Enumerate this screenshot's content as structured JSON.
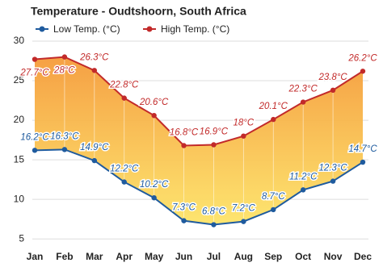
{
  "chart_data": {
    "type": "line",
    "title": "Temperature - Oudtshoorn, South Africa",
    "categories": [
      "Jan",
      "Feb",
      "Mar",
      "Apr",
      "May",
      "Jun",
      "Jul",
      "Aug",
      "Sep",
      "Oct",
      "Nov",
      "Dec"
    ],
    "series": [
      {
        "name": "Low Temp. (°C)",
        "color": "#1f5b9e",
        "values": [
          16.2,
          16.3,
          14.9,
          12.2,
          10.2,
          7.3,
          6.8,
          7.2,
          8.7,
          11.2,
          12.3,
          14.7
        ],
        "value_labels": [
          "16.2°C",
          "16.3°C",
          "14.9°C",
          "12.2°C",
          "10.2°C",
          "7.3°C",
          "6.8°C",
          "7.2°C",
          "8.7°C",
          "11.2°C",
          "12.3°C",
          "14.7°C"
        ]
      },
      {
        "name": "High Temp. (°C)",
        "color": "#c22a2a",
        "values": [
          27.7,
          28,
          26.3,
          22.8,
          20.6,
          16.8,
          16.9,
          18,
          20.1,
          22.3,
          23.8,
          26.2
        ],
        "value_labels": [
          "27.7°C",
          "28°C",
          "26.3°C",
          "22.8°C",
          "20.6°C",
          "16.8°C",
          "16.9°C",
          "18°C",
          "20.1°C",
          "22.3°C",
          "23.8°C",
          "26.2°C"
        ]
      }
    ],
    "ylim": [
      4,
      30
    ],
    "yticks": [
      5,
      10,
      15,
      20,
      25,
      30
    ],
    "grid": true
  }
}
